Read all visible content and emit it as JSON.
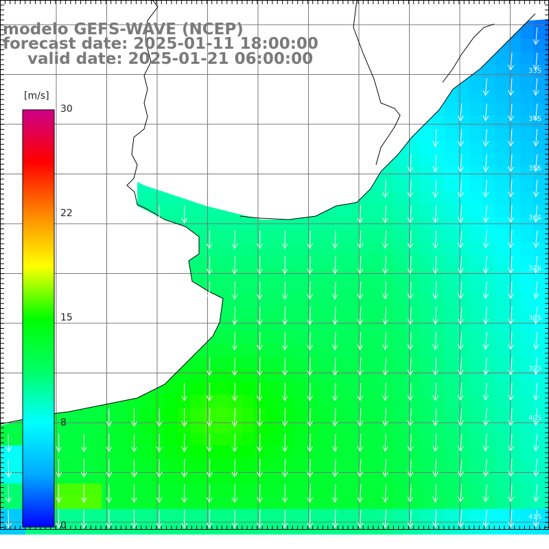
{
  "title": {
    "line1": "modelo GEFS-WAVE (NCEP)",
    "line2": "forecast date: 2025-01-11 18:00:00",
    "line3": "valid date: 2025-01-21 06:00:00"
  },
  "colorbar": {
    "unit": "[m/s]",
    "ticks": [
      "30",
      "22",
      "15",
      "8",
      "0"
    ],
    "tick_values": [
      30,
      22,
      15,
      8,
      0
    ],
    "min": 0,
    "max": 30,
    "colors": [
      "#0000ff",
      "#00aaff",
      "#00ffff",
      "#00ff66",
      "#00ff00",
      "#ffff00",
      "#ff8800",
      "#ff0000",
      "#cc0088"
    ]
  },
  "map": {
    "lat_labels": [
      "33S",
      "34S",
      "35S",
      "36S",
      "37S",
      "38S",
      "39S",
      "40S",
      "41S"
    ],
    "colors": {
      "grid": "#777777",
      "coast": "#000000",
      "land": "#ffffff",
      "arrow": "#ffffff"
    }
  }
}
